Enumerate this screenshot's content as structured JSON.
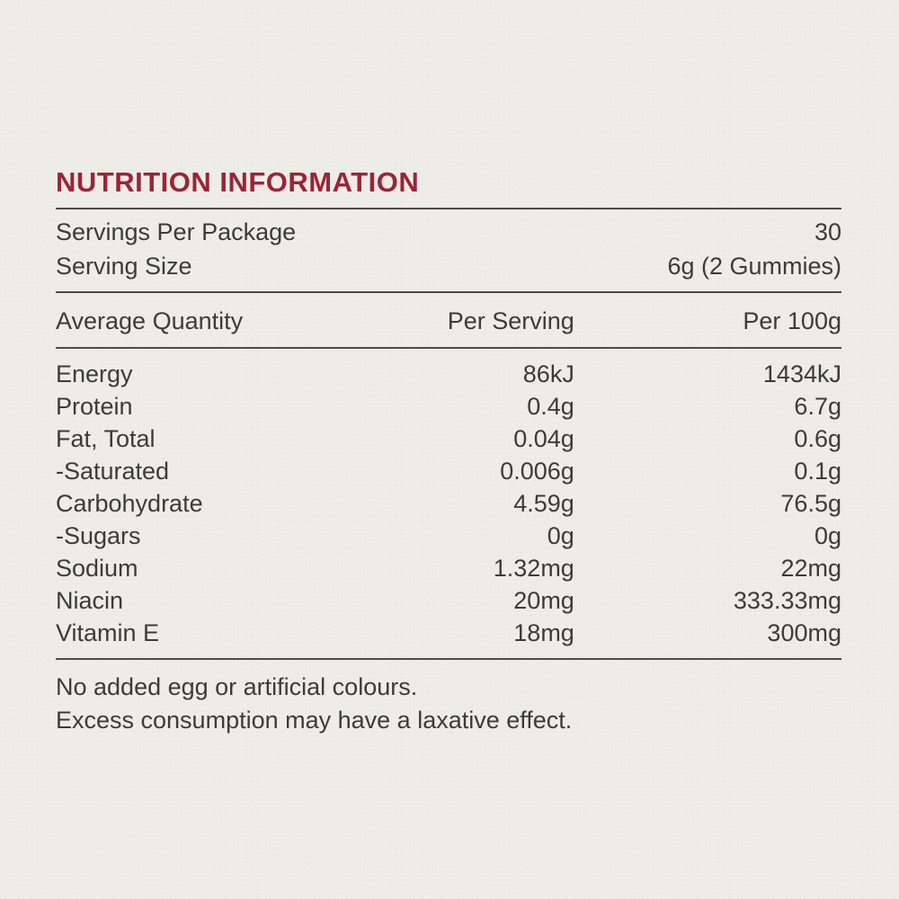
{
  "colors": {
    "background": "#edece6",
    "text": "#3c3b38",
    "accent": "#9b2437",
    "rule": "#4b4a46"
  },
  "title": "NUTRITION INFORMATION",
  "serving_info": {
    "rows": [
      {
        "label": "Servings Per Package",
        "value": "30"
      },
      {
        "label": "Serving Size",
        "value": "6g (2 Gummies)"
      }
    ]
  },
  "table": {
    "headers": [
      "Average Quantity",
      "Per Serving",
      "Per 100g"
    ],
    "rows": [
      {
        "name": "Energy",
        "per_serving": "86kJ",
        "per_100g": "1434kJ"
      },
      {
        "name": "Protein",
        "per_serving": "0.4g",
        "per_100g": "6.7g"
      },
      {
        "name": "Fat, Total",
        "per_serving": "0.04g",
        "per_100g": "0.6g"
      },
      {
        "name": "-Saturated",
        "per_serving": "0.006g",
        "per_100g": "0.1g"
      },
      {
        "name": "Carbohydrate",
        "per_serving": "4.59g",
        "per_100g": "76.5g"
      },
      {
        "name": "-Sugars",
        "per_serving": "0g",
        "per_100g": "0g"
      },
      {
        "name": "Sodium",
        "per_serving": "1.32mg",
        "per_100g": "22mg"
      },
      {
        "name": "Niacin",
        "per_serving": "20mg",
        "per_100g": "333.33mg"
      },
      {
        "name": "Vitamin E",
        "per_serving": "18mg",
        "per_100g": "300mg"
      }
    ]
  },
  "footnotes": [
    "No added egg or artificial colours.",
    "Excess consumption may have a laxative effect."
  ]
}
